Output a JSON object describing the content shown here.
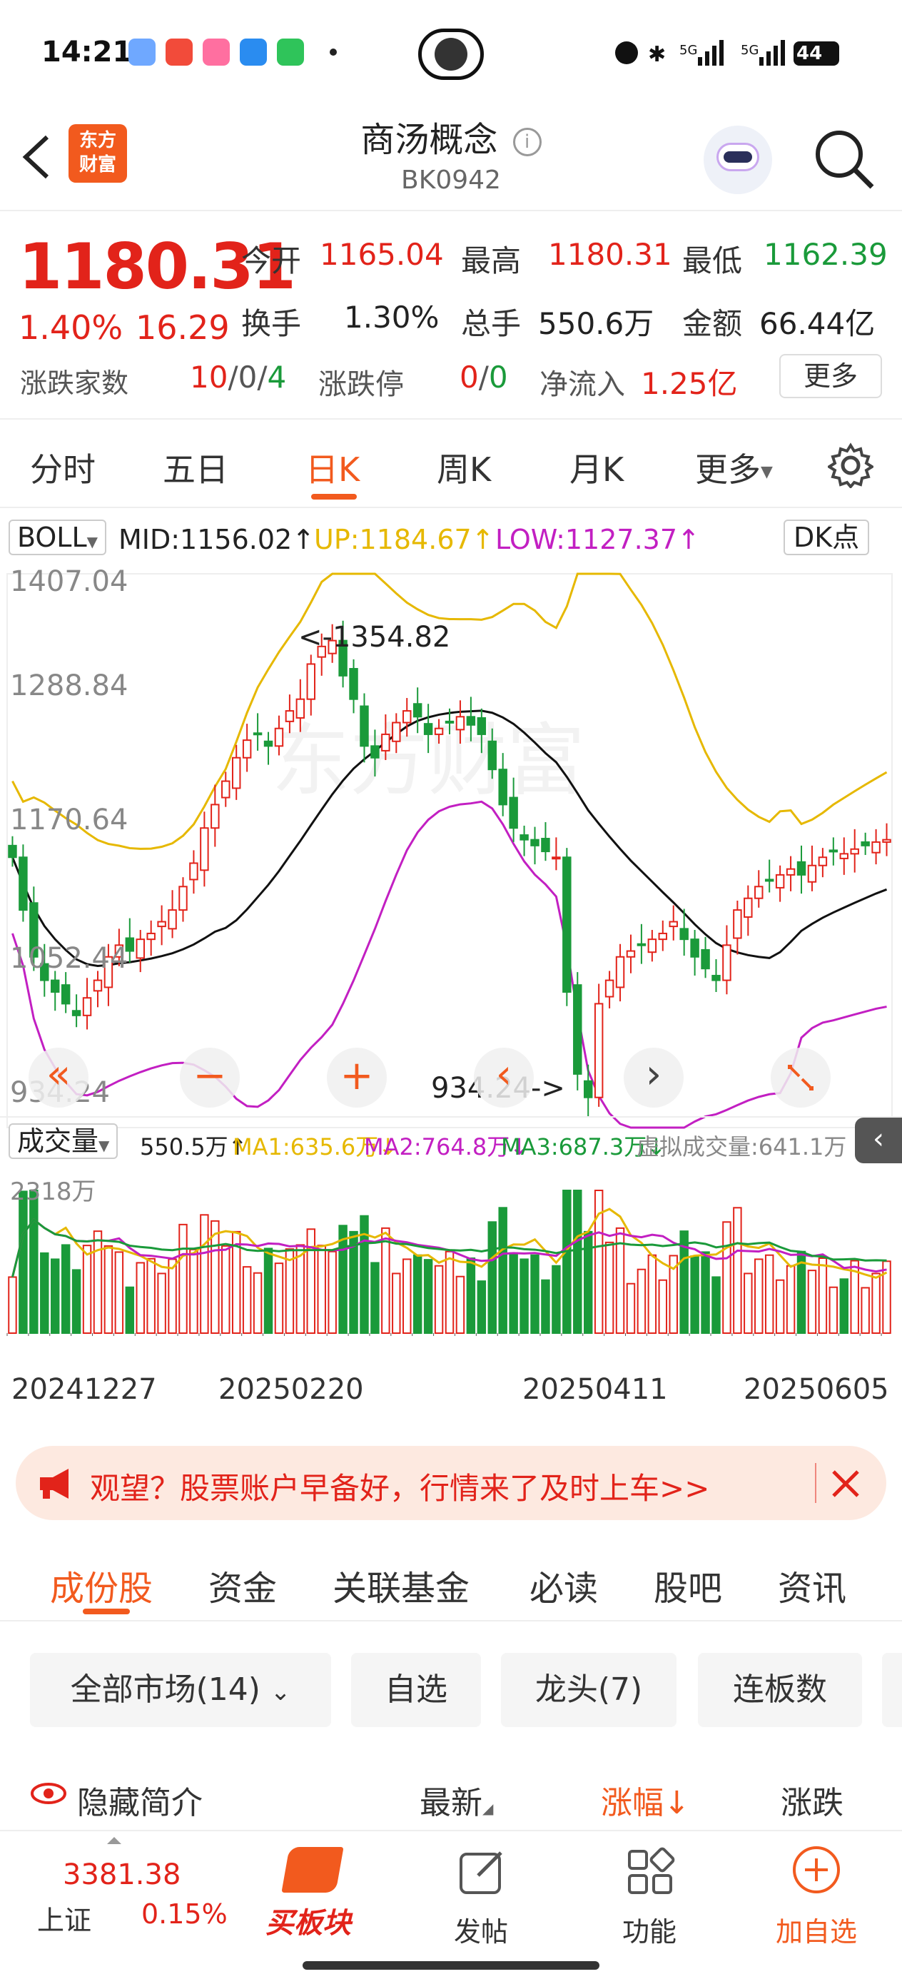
{
  "status_bar": {
    "time": "14:21",
    "battery": "44"
  },
  "header": {
    "logo_line1": "东方",
    "logo_line2": "财富",
    "title": "商汤概念",
    "code": "BK0942"
  },
  "quote": {
    "price": "1180.31",
    "change_pct": "1.40%",
    "change_abs": "16.29",
    "open_label": "今开",
    "open": "1165.04",
    "high_label": "最高",
    "high": "1180.31",
    "low_label": "最低",
    "low": "1162.39",
    "turnover_label": "换手",
    "turnover": "1.30%",
    "volume_label": "总手",
    "volume": "550.6万",
    "amount_label": "金额",
    "amount": "66.44亿",
    "breadth_label": "涨跌家数",
    "breadth_up": "10",
    "breadth_flat": "0",
    "breadth_down": "4",
    "sep": "/",
    "limit_label": "涨跌停",
    "limit_up": "0",
    "limit_down": "0",
    "inflow_label": "净流入",
    "inflow": "1.25亿",
    "more_button": "更多"
  },
  "period_tabs": [
    {
      "label": "分时"
    },
    {
      "label": "五日"
    },
    {
      "label": "日K"
    },
    {
      "label": "周K"
    },
    {
      "label": "月K"
    },
    {
      "label": "更多"
    }
  ],
  "active_period": "日K",
  "boll": {
    "selector": "BOLL",
    "mid": "MID:1156.02↑",
    "up": "UP:1184.67↑",
    "low": "LOW:1127.37↑",
    "dk_button": "DK点"
  },
  "volume_ind": {
    "selector": "成交量",
    "vol": "550.5万↑",
    "ma1": "MA1:635.6万↓",
    "ma2": "MA2:764.8万↓",
    "ma3": "MA3:687.3万↓",
    "virtual": "虚拟成交量:641.1万",
    "top_label": "2318万"
  },
  "chart_data": {
    "type": "candlestick",
    "y_ticks": [
      "1407.04",
      "1288.84",
      "1170.64",
      "1052.44",
      "934.24"
    ],
    "ylim": [
      934.24,
      1407.04
    ],
    "x_ticks": [
      "20241227",
      "20250220",
      "20250411",
      "20250605"
    ],
    "annotations": {
      "high": "<-1354.82",
      "low": "934.24->"
    },
    "watermark": "东方财富",
    "colors": {
      "up": "#e2231a",
      "down": "#1a9a3a",
      "mid": "#111111",
      "upper": "#e6b800",
      "lower": "#c21fc2"
    },
    "close": [
      1165,
      1120,
      1080,
      1060,
      1050,
      1040,
      1030,
      1045,
      1060,
      1080,
      1090,
      1085,
      1095,
      1100,
      1110,
      1120,
      1140,
      1160,
      1190,
      1210,
      1230,
      1250,
      1265,
      1270,
      1260,
      1275,
      1290,
      1300,
      1330,
      1345,
      1350,
      1320,
      1300,
      1260,
      1250,
      1270,
      1280,
      1290,
      1285,
      1270,
      1275,
      1280,
      1285,
      1278,
      1270,
      1240,
      1210,
      1190,
      1180,
      1175,
      1170,
      1165,
      1050,
      980,
      960,
      1040,
      1060,
      1080,
      1085,
      1090,
      1095,
      1100,
      1110,
      1095,
      1080,
      1070,
      1060,
      1090,
      1120,
      1130,
      1140,
      1145,
      1150,
      1155,
      1150,
      1158,
      1165,
      1170,
      1168,
      1172,
      1175,
      1178,
      1180
    ],
    "bands_desc": "upper, mid, lower Bollinger bands"
  },
  "controls": {
    "left": "«",
    "minus": "−",
    "plus": "+",
    "prev": "‹",
    "next": "›"
  },
  "banner": {
    "text": "观望？股票账户早备好，行情来了及时上车>>"
  },
  "segments": [
    {
      "label": "成份股"
    },
    {
      "label": "资金"
    },
    {
      "label": "关联基金"
    },
    {
      "label": "必读"
    },
    {
      "label": "股吧"
    },
    {
      "label": "资讯"
    }
  ],
  "chips": [
    {
      "label": "全部市场(14)"
    },
    {
      "label": "自选"
    },
    {
      "label": "龙头(7)"
    },
    {
      "label": "连板数"
    }
  ],
  "columns": {
    "hide": "隐藏简介",
    "latest": "最新",
    "change": "涨幅",
    "change2": "涨跌"
  },
  "bottom_nav": {
    "index_value": "3381.38",
    "index_name": "上证",
    "index_pct": "0.15%",
    "buy": "买板块",
    "post": "发帖",
    "func": "功能",
    "add": "加自选"
  }
}
